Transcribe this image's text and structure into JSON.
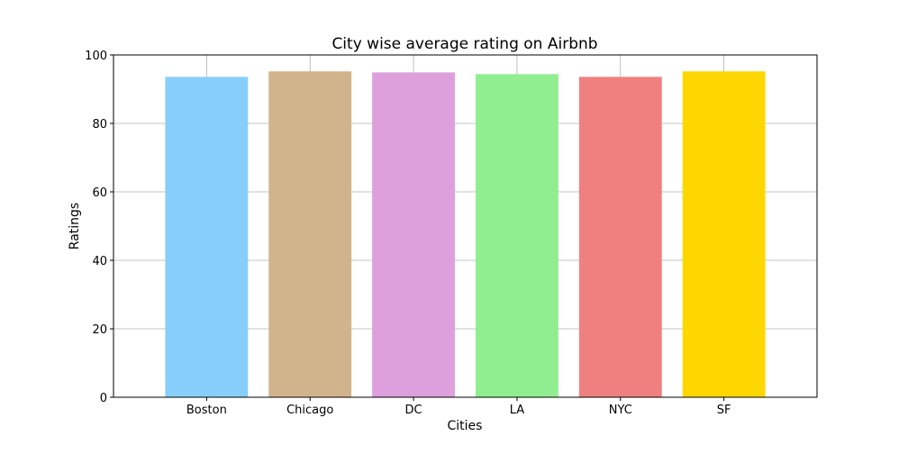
{
  "chart_data": {
    "type": "bar",
    "title": "City wise average rating on Airbnb",
    "xlabel": "Cities",
    "ylabel": "Ratings",
    "categories": [
      "Boston",
      "Chicago",
      "DC",
      "LA",
      "NYC",
      "SF"
    ],
    "values": [
      93.6,
      95.2,
      94.9,
      94.4,
      93.6,
      95.2
    ],
    "colors": [
      "#87CEFA",
      "#D2B48C",
      "#DDA0DD",
      "#90EE90",
      "#F08080",
      "#FFD700"
    ],
    "ylim": [
      0,
      100
    ],
    "yticks": [
      0,
      20,
      40,
      60,
      80,
      100
    ],
    "grid": true,
    "legend": "none"
  }
}
